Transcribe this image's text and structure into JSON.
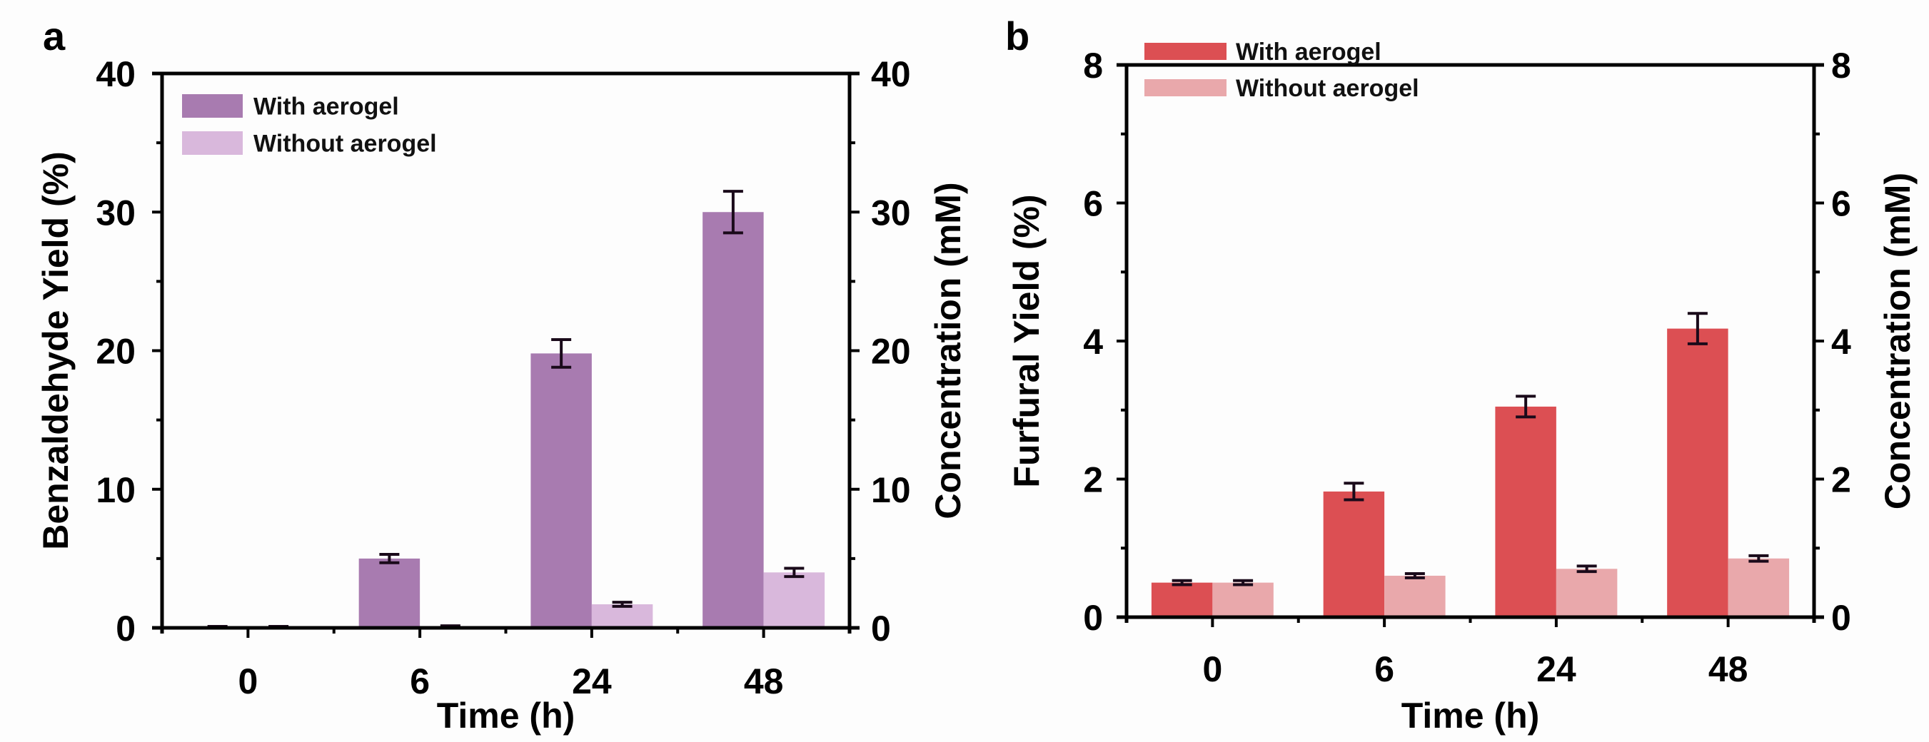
{
  "chart_data": [
    {
      "panel": "a",
      "type": "bar",
      "title": "",
      "xlabel": "Time (h)",
      "ylabel": "Benzaldehyde Yield (%)",
      "ylabel_right": "Concentration (mM)",
      "categories": [
        "0",
        "6",
        "24",
        "48"
      ],
      "ylim": [
        0,
        40
      ],
      "ylim_right": [
        0,
        40
      ],
      "yticks": [
        0,
        10,
        20,
        30,
        40
      ],
      "yticks_right": [
        0,
        10,
        20,
        30,
        40
      ],
      "grid": false,
      "legend_position": "top-left",
      "series": [
        {
          "name": "With aerogel",
          "color": "#a87bb0",
          "values": [
            0.05,
            5.0,
            19.8,
            30.0
          ],
          "errors": [
            0.05,
            0.3,
            1.0,
            1.5
          ]
        },
        {
          "name": "Without aerogel",
          "color": "#d9b8dc",
          "values": [
            0.05,
            0.1,
            1.7,
            4.0
          ],
          "errors": [
            0.05,
            0.05,
            0.15,
            0.3
          ]
        }
      ]
    },
    {
      "panel": "b",
      "type": "bar",
      "title": "",
      "xlabel": "Time (h)",
      "ylabel": "Furfural Yield (%)",
      "ylabel_right": "Concentration (mM)",
      "categories": [
        "0",
        "6",
        "24",
        "48"
      ],
      "ylim": [
        0,
        8
      ],
      "ylim_right": [
        0,
        8
      ],
      "yticks": [
        0,
        2,
        4,
        6,
        8
      ],
      "yticks_right": [
        0,
        2,
        4,
        6,
        8
      ],
      "grid": false,
      "legend_position": "top-left",
      "series": [
        {
          "name": "With aerogel",
          "color": "#dc4f53",
          "values": [
            0.5,
            1.82,
            3.05,
            4.18
          ],
          "errors": [
            0.03,
            0.12,
            0.15,
            0.22
          ]
        },
        {
          "name": "Without aerogel",
          "color": "#e9a8ab",
          "values": [
            0.5,
            0.6,
            0.7,
            0.85
          ],
          "errors": [
            0.03,
            0.03,
            0.04,
            0.04
          ]
        }
      ]
    }
  ]
}
